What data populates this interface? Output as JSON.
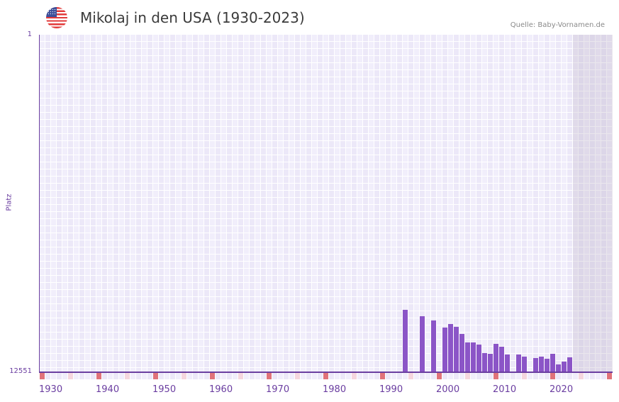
{
  "header": {
    "flag_icon": "us-flag-icon",
    "title": "Mikolaj in den USA (1930-2023)",
    "source": "Quelle: Baby-Vornamen.de"
  },
  "axes": {
    "y_title": "Platz",
    "y_top_label": "1",
    "y_bottom_label": "12551"
  },
  "colors": {
    "bar": "#8b55c7",
    "axis": "#6b3fa0",
    "decade_tick": "#e0727a",
    "half_decade_tick": "#f5d6de"
  },
  "chart_data": {
    "type": "bar",
    "title": "Mikolaj in den USA (1930-2023)",
    "xlabel": "",
    "ylabel": "Platz",
    "ylim": [
      12551,
      1
    ],
    "y_inverted": true,
    "x_range": [
      1930,
      2030
    ],
    "future_shaded_from": 2024,
    "x_tick_labels": [
      "1930",
      "1940",
      "1950",
      "1960",
      "1970",
      "1980",
      "1990",
      "2000",
      "2010",
      "2020"
    ],
    "grid": true,
    "legend": null,
    "categories": [
      1994,
      1997,
      1999,
      2001,
      2002,
      2003,
      2004,
      2005,
      2006,
      2007,
      2008,
      2009,
      2010,
      2011,
      2012,
      2014,
      2015,
      2017,
      2018,
      2019,
      2020,
      2021,
      2022,
      2023
    ],
    "values": [
      10222,
      10459,
      10617,
      10881,
      10749,
      10855,
      11118,
      11435,
      11435,
      11514,
      11830,
      11857,
      11487,
      11593,
      11883,
      11883,
      11962,
      12015,
      11962,
      12041,
      11857,
      12252,
      12147,
      11988
    ]
  }
}
